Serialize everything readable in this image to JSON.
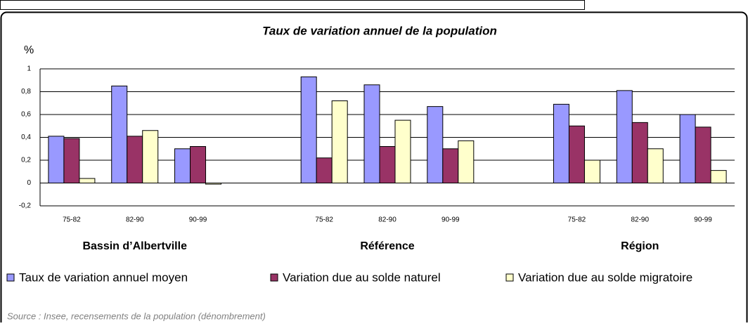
{
  "chart_data": {
    "type": "bar",
    "title": "Taux de variation annuel de la population",
    "y_label": "%",
    "categories": [
      "75-82",
      "82-90",
      "90-99",
      null,
      "75-82",
      "82-90",
      "90-99",
      null,
      "75-82",
      "82-90",
      "90-99"
    ],
    "group_labels": [
      "Bassin d’Albertville",
      "Référence",
      "Région"
    ],
    "series": [
      {
        "name": "Taux de variation annuel moyen",
        "color": "#9999ff",
        "values": [
          0.41,
          0.85,
          0.3,
          null,
          0.93,
          0.86,
          0.67,
          null,
          0.69,
          0.81,
          0.6
        ]
      },
      {
        "name": "Variation due au solde naturel",
        "color": "#993366",
        "values": [
          0.39,
          0.41,
          0.32,
          null,
          0.22,
          0.32,
          0.3,
          null,
          0.5,
          0.53,
          0.49
        ]
      },
      {
        "name": "Variation due au solde migratoire",
        "color": "#ffffcc",
        "values": [
          0.04,
          0.46,
          -0.01,
          null,
          0.72,
          0.55,
          0.37,
          null,
          0.2,
          0.3,
          0.11
        ]
      }
    ],
    "ylim": [
      -0.2,
      1
    ],
    "yticks": [
      {
        "value": -0.2,
        "label": "-0,2"
      },
      0,
      {
        "value": 0.2,
        "label": "0,2"
      },
      {
        "value": 0.4,
        "label": "0,4"
      },
      {
        "value": 0.6,
        "label": "0,6"
      },
      {
        "value": 0.8,
        "label": "0,8"
      },
      1
    ],
    "grid": true,
    "legend": "bottom",
    "source": "Source : Insee, recensements de la population (dénombrement)"
  }
}
